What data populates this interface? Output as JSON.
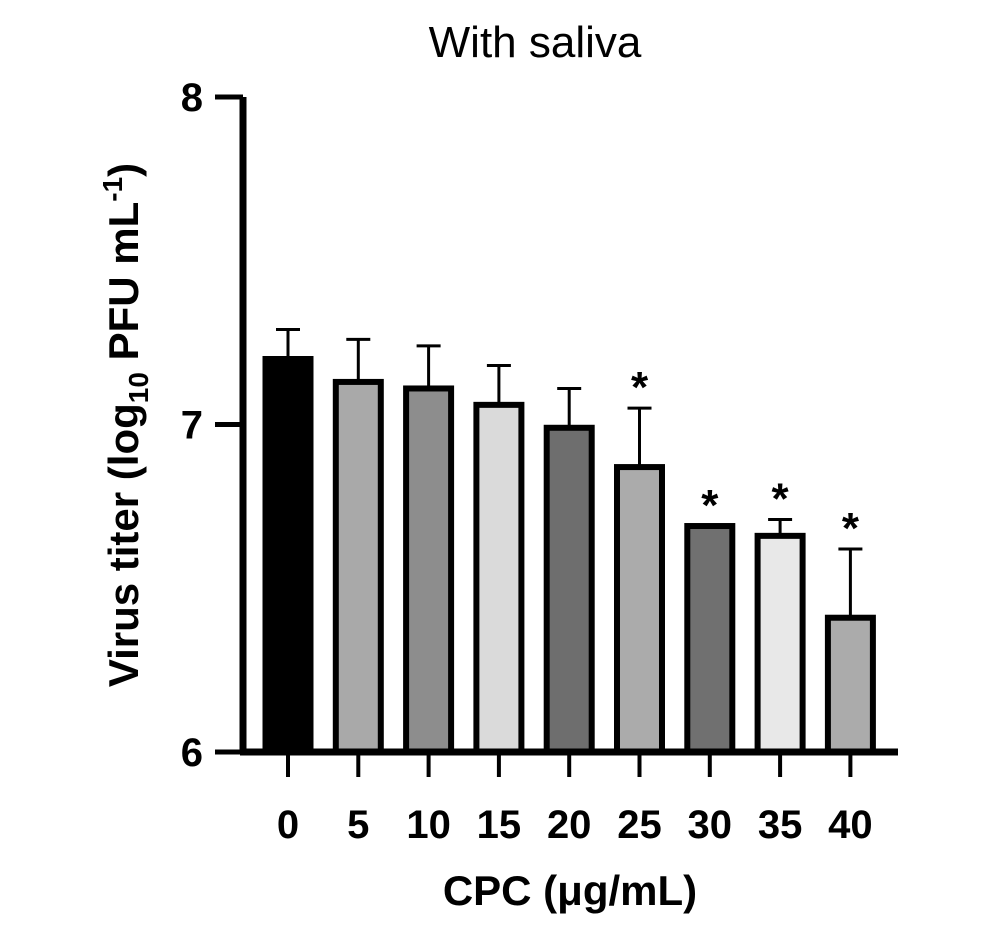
{
  "chart_data": {
    "type": "bar",
    "title": "With saliva",
    "xlabel": "CPC (μg/mL)",
    "ylabel": {
      "prefix": "Virus titer (log",
      "sub": "10",
      "middle": " PFU mL",
      "sup": "-1",
      "suffix": ")"
    },
    "categories": [
      "0",
      "5",
      "10",
      "15",
      "20",
      "25",
      "30",
      "35",
      "40"
    ],
    "values": [
      7.2,
      7.13,
      7.11,
      7.06,
      6.99,
      6.87,
      6.69,
      6.66,
      6.41
    ],
    "errors": [
      0.09,
      0.13,
      0.13,
      0.12,
      0.12,
      0.18,
      0.0,
      0.05,
      0.21
    ],
    "fills": [
      "#000000",
      "#a9a9a9",
      "#8d8d8d",
      "#dadada",
      "#6e6e6e",
      "#ababab",
      "#707070",
      "#e8e8e8",
      "#ababab"
    ],
    "significance": [
      "",
      "",
      "",
      "",
      "",
      "*",
      "*",
      "*",
      "*"
    ],
    "yticks": [
      "6",
      "7",
      "8"
    ],
    "ylim": [
      6,
      8
    ],
    "grid": false
  }
}
